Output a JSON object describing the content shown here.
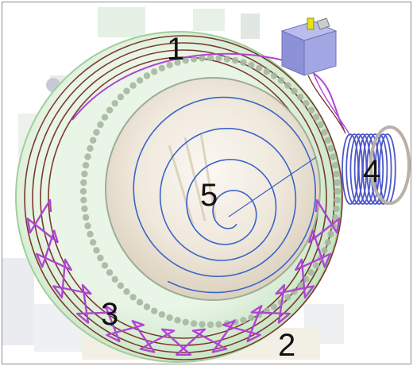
{
  "callouts": {
    "label_1": "1",
    "label_2": "2",
    "label_3": "3",
    "label_4": "4",
    "label_5": "5"
  },
  "colors": {
    "outer_rings": "#7a3a2e",
    "serpentine_coil": "#b044d6",
    "spiral": "#3a64c8",
    "green_shell": "#bfe3bf",
    "tooth_ring": "#a7b7a2",
    "dome": "#f3eee6",
    "side_coil": "#4d57c9",
    "cryostat_box": "#8d91d8",
    "connector": "#e5e21a"
  },
  "icons": [
    "coil-system-illustration"
  ]
}
